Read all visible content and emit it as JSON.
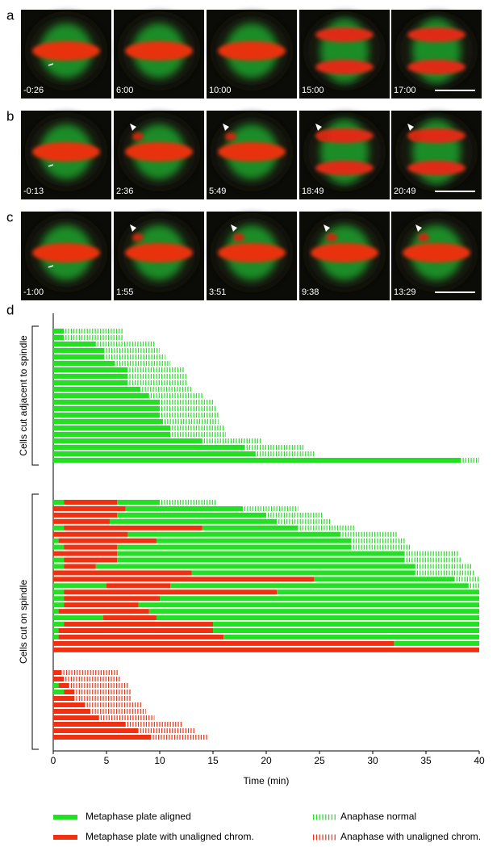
{
  "panels": [
    {
      "letter": "a",
      "times": [
        "-0:26",
        "6:00",
        "10:00",
        "15:00",
        "17:00"
      ]
    },
    {
      "letter": "b",
      "times": [
        "-0:13",
        "2:36",
        "5:49",
        "18:49",
        "20:49"
      ]
    },
    {
      "letter": "c",
      "times": [
        "-1:00",
        "1:55",
        "3:51",
        "9:38",
        "13:29"
      ]
    }
  ],
  "chart_data": {
    "type": "timeline",
    "letter": "d",
    "xlabel": "Time (min)",
    "xlim": [
      0,
      40
    ],
    "xticks": [
      0,
      5,
      10,
      15,
      20,
      25,
      30,
      35,
      40
    ],
    "legend": {
      "aligned": {
        "name": "Metaphase plate aligned",
        "color": "#22e022",
        "dashed": false
      },
      "unaligned": {
        "name": "Metaphase plate with unaligned chrom.",
        "color": "#f03010",
        "dashed": false
      },
      "ana_normal": {
        "name": "Anaphase normal",
        "color": "#22e022",
        "dashed": true
      },
      "ana_unaligned": {
        "name": "Anaphase with unaligned chrom.",
        "color": "#f03010",
        "dashed": true
      }
    },
    "groups": [
      {
        "label": "Cells cut adjacent to spindle",
        "blocks": [
          [
            [
              {
                "aligned": 1
              },
              {
                "ana_normal": 5.5
              }
            ],
            [
              {
                "aligned": 1
              },
              {
                "ana_normal": 5.5
              }
            ],
            [
              {
                "aligned": 4
              },
              {
                "ana_normal": 5.5
              }
            ],
            [
              {
                "aligned": 4.8
              },
              {
                "ana_normal": 5.2
              }
            ],
            [
              {
                "aligned": 4.8
              },
              {
                "ana_normal": 5.7
              }
            ],
            [
              {
                "aligned": 5.8
              },
              {
                "ana_normal": 5.2
              }
            ],
            [
              {
                "aligned": 7
              },
              {
                "ana_normal": 5.3
              }
            ],
            [
              {
                "aligned": 7
              },
              {
                "ana_normal": 5.5
              }
            ],
            [
              {
                "aligned": 7
              },
              {
                "ana_normal": 5.5
              }
            ],
            [
              {
                "aligned": 8.2
              },
              {
                "ana_normal": 4.8
              }
            ],
            [
              {
                "aligned": 9
              },
              {
                "ana_normal": 5
              }
            ],
            [
              {
                "aligned": 10
              },
              {
                "ana_normal": 5
              }
            ],
            [
              {
                "aligned": 10
              },
              {
                "ana_normal": 5.3
              }
            ],
            [
              {
                "aligned": 10
              },
              {
                "ana_normal": 5.5
              }
            ],
            [
              {
                "aligned": 10.3
              },
              {
                "ana_normal": 5.2
              }
            ],
            [
              {
                "aligned": 11
              },
              {
                "ana_normal": 5
              }
            ],
            [
              {
                "aligned": 11
              },
              {
                "ana_normal": 5.2
              }
            ],
            [
              {
                "aligned": 14
              },
              {
                "ana_normal": 5.5
              }
            ],
            [
              {
                "aligned": 18
              },
              {
                "ana_normal": 5.5
              }
            ],
            [
              {
                "aligned": 19
              },
              {
                "ana_normal": 5.5
              }
            ],
            [
              {
                "aligned": 38.3
              },
              {
                "ana_normal": 1.7
              }
            ]
          ]
        ]
      },
      {
        "label": "Cells cut on spindle",
        "blocks": [
          [
            [
              {
                "aligned": 1
              },
              {
                "unaligned": 5
              },
              {
                "aligned": 4
              },
              {
                "ana_normal": 5.3
              }
            ],
            [
              {
                "unaligned": 6.8
              },
              {
                "aligned": 11
              },
              {
                "ana_normal": 5.2
              }
            ],
            [
              {
                "unaligned": 6
              },
              {
                "aligned": 14
              },
              {
                "ana_normal": 5.3
              }
            ],
            [
              {
                "unaligned": 5.3
              },
              {
                "aligned": 15.7
              },
              {
                "ana_normal": 5
              }
            ],
            [
              {
                "aligned": 1
              },
              {
                "unaligned": 13
              },
              {
                "aligned": 9
              },
              {
                "ana_normal": 5.3
              }
            ],
            [
              {
                "unaligned": 7
              },
              {
                "aligned": 20
              },
              {
                "ana_normal": 5.3
              }
            ],
            [
              {
                "aligned": 0.5
              },
              {
                "unaligned": 9.2
              },
              {
                "aligned": 18.3
              },
              {
                "ana_normal": 5
              }
            ],
            [
              {
                "aligned": 1
              },
              {
                "unaligned": 5
              },
              {
                "aligned": 22
              },
              {
                "ana_normal": 5.5
              }
            ],
            [
              {
                "unaligned": 6
              },
              {
                "aligned": 27
              },
              {
                "ana_normal": 5
              }
            ],
            [
              {
                "aligned": 1
              },
              {
                "unaligned": 5
              },
              {
                "aligned": 27
              },
              {
                "ana_normal": 5.3
              }
            ],
            [
              {
                "aligned": 1
              },
              {
                "unaligned": 3
              },
              {
                "aligned": 30
              },
              {
                "ana_normal": 5.3
              }
            ],
            [
              {
                "unaligned": 13
              },
              {
                "aligned": 21
              },
              {
                "ana_normal": 5.5
              }
            ],
            [
              {
                "unaligned": 24.5
              },
              {
                "aligned": 13.2
              },
              {
                "ana_normal": 2.3
              }
            ],
            [
              {
                "aligned": 5
              },
              {
                "unaligned": 6
              },
              {
                "aligned": 28
              },
              {
                "ana_normal": 1
              }
            ],
            [
              {
                "aligned": 1
              },
              {
                "unaligned": 20
              },
              {
                "aligned": 19
              }
            ],
            [
              {
                "aligned": 1
              },
              {
                "unaligned": 9
              },
              {
                "aligned": 30
              }
            ],
            [
              {
                "aligned": 1
              },
              {
                "unaligned": 7
              },
              {
                "aligned": 32
              }
            ],
            [
              {
                "aligned": 0.5
              },
              {
                "unaligned": 8.5
              },
              {
                "aligned": 31
              }
            ],
            [
              {
                "aligned": 4.7
              },
              {
                "unaligned": 5
              },
              {
                "aligned": 30.3
              }
            ],
            [
              {
                "aligned": 1
              },
              {
                "unaligned": 14
              },
              {
                "aligned": 25
              }
            ],
            [
              {
                "aligned": 0.5
              },
              {
                "unaligned": 14.5
              },
              {
                "aligned": 25
              }
            ],
            [
              {
                "aligned": 0.5
              },
              {
                "unaligned": 15.5
              },
              {
                "aligned": 24
              }
            ],
            [
              {
                "unaligned": 32
              },
              {
                "aligned": 8
              }
            ],
            [
              {
                "unaligned": 40
              }
            ]
          ],
          [
            [
              {
                "unaligned": 0.8
              },
              {
                "ana_unaligned": 5.4
              }
            ],
            [
              {
                "unaligned": 1
              },
              {
                "ana_unaligned": 5.3
              }
            ],
            [
              {
                "aligned": 0.5
              },
              {
                "unaligned": 1
              },
              {
                "ana_unaligned": 5.5
              }
            ],
            [
              {
                "aligned": 1
              },
              {
                "unaligned": 1
              },
              {
                "ana_unaligned": 5.3
              }
            ],
            [
              {
                "unaligned": 2
              },
              {
                "ana_unaligned": 5.3
              }
            ],
            [
              {
                "unaligned": 3
              },
              {
                "ana_unaligned": 5.3
              }
            ],
            [
              {
                "unaligned": 3.5
              },
              {
                "ana_unaligned": 5.2
              }
            ],
            [
              {
                "unaligned": 4.3
              },
              {
                "ana_unaligned": 5.2
              }
            ],
            [
              {
                "unaligned": 6.8
              },
              {
                "ana_unaligned": 5.4
              }
            ],
            [
              {
                "unaligned": 8
              },
              {
                "ana_unaligned": 5.3
              }
            ],
            [
              {
                "unaligned": 9.2
              },
              {
                "ana_unaligned": 5.3
              }
            ]
          ]
        ]
      }
    ]
  }
}
